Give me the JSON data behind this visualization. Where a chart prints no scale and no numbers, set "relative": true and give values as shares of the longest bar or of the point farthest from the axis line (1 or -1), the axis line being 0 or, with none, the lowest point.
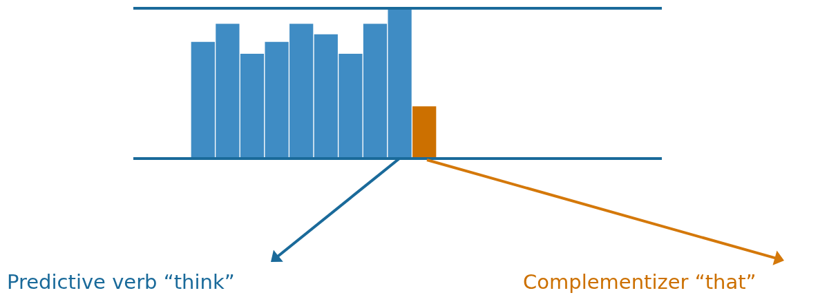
{
  "chart_data": {
    "type": "bar",
    "relative": true,
    "categories": [
      null,
      null,
      null,
      null,
      null,
      null,
      null,
      null,
      null,
      null
    ],
    "values": [
      0.78,
      0.9,
      0.7,
      0.78,
      0.9,
      0.83,
      0.7,
      0.9,
      1,
      0.35
    ],
    "colors": [
      "#3f8cc4",
      "#3f8cc4",
      "#3f8cc4",
      "#3f8cc4",
      "#3f8cc4",
      "#3f8cc4",
      "#3f8cc4",
      "#3f8cc4",
      "#3f8cc4",
      "#cc7000"
    ],
    "ref_lines": [
      {
        "axis": "y",
        "value": 1,
        "color": "#1a6a9a"
      }
    ],
    "annotations": [
      "Predictive verb “think”",
      "Complementizer “that”"
    ],
    "legend": false
  }
}
